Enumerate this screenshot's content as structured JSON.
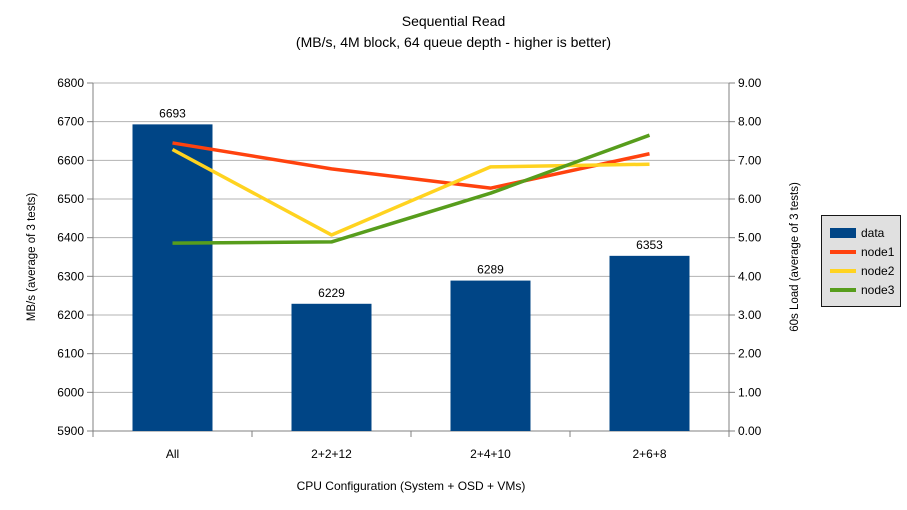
{
  "title": "Sequential Read",
  "subtitle": "(MB/s, 4M block, 64 queue depth - higher is better)",
  "chart_data": {
    "type": "bar+line",
    "categories": [
      "All",
      "2+2+12",
      "2+4+10",
      "2+6+8"
    ],
    "xlabel": "CPU Configuration (System + OSD + VMs)",
    "left_axis": {
      "label": "MB/s (average of 3 tests)",
      "min": 5900,
      "max": 6800,
      "step": 100,
      "decimals": 0
    },
    "right_axis": {
      "label": "60s Load (average of 3 tests)",
      "min": 0,
      "max": 9,
      "step": 1,
      "decimals": 2
    },
    "bar_series": {
      "name": "data",
      "color": "#004586",
      "axis": "left",
      "values": [
        6693,
        6229,
        6289,
        6353
      ]
    },
    "line_series": [
      {
        "name": "node1",
        "color": "#FF420E",
        "axis": "right",
        "values": [
          7.45,
          6.78,
          6.28,
          7.17
        ]
      },
      {
        "name": "node2",
        "color": "#FFD320",
        "axis": "right",
        "values": [
          7.28,
          5.07,
          6.83,
          6.9
        ]
      },
      {
        "name": "node3",
        "color": "#579D1C",
        "axis": "right",
        "values": [
          4.86,
          4.89,
          6.15,
          7.65
        ]
      }
    ],
    "grid": "horizontal",
    "legend_position": "right"
  },
  "colors": {
    "background": "#ffffff",
    "gridline": "#b3b3b3",
    "axis": "#808080",
    "text": "#000000",
    "legend_bg": "#e0e0e0",
    "legend_border": "#161616"
  }
}
